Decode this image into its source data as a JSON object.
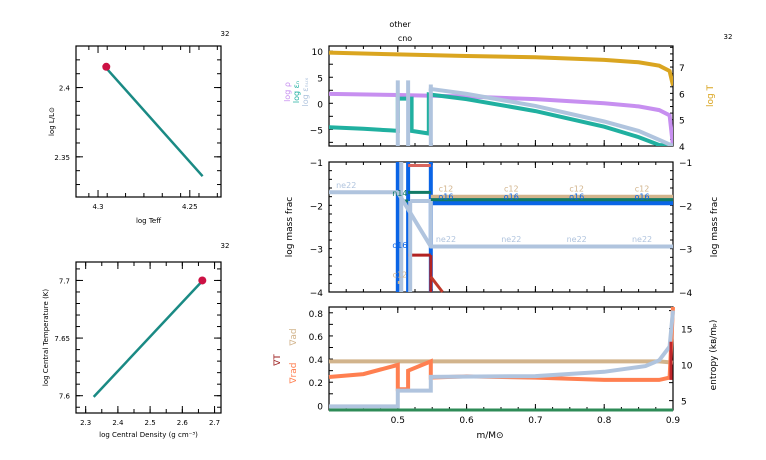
{
  "chart_data": [
    {
      "id": "hr",
      "type": "line",
      "title": "",
      "model_number": "32",
      "xlabel": "log Teff",
      "ylabel": "log L/L⊙",
      "xlim": [
        4.312,
        4.233
      ],
      "ylim": [
        2.321,
        2.43
      ],
      "xticks": [
        4.3,
        4.25
      ],
      "xtick_labels": [
        "4.3",
        "4.25"
      ],
      "yticks": [
        2.4,
        2.35
      ],
      "ytick_labels": [
        "2.4",
        "2.35"
      ],
      "series": [
        {
          "name": "track",
          "color": "#1a8a84",
          "x": [
            4.2955,
            4.243
          ],
          "y": [
            2.414,
            2.336
          ]
        }
      ],
      "marker": {
        "name": "current",
        "color": "#cc1144",
        "x": 4.2955,
        "y": 2.415
      }
    },
    {
      "id": "center",
      "type": "line",
      "model_number": "32",
      "xlabel": "log Central Density (g cm⁻³)",
      "ylabel": "log Central Temperature (K)",
      "xlim": [
        2.27,
        2.72
      ],
      "ylim": [
        7.585,
        7.716
      ],
      "xticks": [
        2.3,
        2.4,
        2.5,
        2.6,
        2.7
      ],
      "xtick_labels": [
        "2.3",
        "2.4",
        "2.5",
        "2.6",
        "2.7"
      ],
      "yticks": [
        7.6,
        7.65,
        7.7
      ],
      "ytick_labels": [
        "7.6",
        "7.65",
        "7.7"
      ],
      "series": [
        {
          "name": "track",
          "color": "#1a8a84",
          "x": [
            2.325,
            2.66
          ],
          "y": [
            7.599,
            7.699
          ]
        }
      ],
      "marker": {
        "name": "current",
        "color": "#cc1144",
        "x": 2.662,
        "y": 7.7
      }
    },
    {
      "id": "profile-top",
      "type": "line",
      "model_number": "32",
      "annotations": [
        "other",
        "cno"
      ],
      "xlim": [
        0.4,
        0.9
      ],
      "ylim": [
        -8.2,
        11
      ],
      "yticks": [
        10,
        5,
        0,
        -5
      ],
      "ytick_labels": [
        "10",
        "5",
        "0",
        "−5"
      ],
      "y2lim": [
        4,
        7.8
      ],
      "y2ticks": [
        7,
        6,
        5,
        4
      ],
      "y2tick_labels": [
        "7",
        "6",
        "5",
        "4"
      ],
      "ylabels": [
        {
          "text": "log ρ",
          "color": "#c78ff0"
        },
        {
          "text": "log εₙ",
          "color": "#20b0a0"
        },
        {
          "text": "log εₙᵤₓ",
          "color": "#b0c4de"
        }
      ],
      "y2label": {
        "text": "log T",
        "color": "#daa520"
      },
      "series": [
        {
          "name": "log T",
          "axis": "right",
          "color": "#daa520",
          "x": [
            0.4,
            0.5,
            0.6,
            0.7,
            0.8,
            0.85,
            0.88,
            0.895,
            0.9
          ],
          "y": [
            7.55,
            7.48,
            7.42,
            7.37,
            7.27,
            7.18,
            7.05,
            6.85,
            6.3
          ]
        },
        {
          "name": "log rho",
          "axis": "left",
          "color": "#c78ff0",
          "x": [
            0.4,
            0.5,
            0.6,
            0.7,
            0.8,
            0.85,
            0.88,
            0.895,
            0.9
          ],
          "y": [
            1.8,
            1.6,
            1.3,
            0.8,
            0.0,
            -0.6,
            -1.3,
            -2.3,
            -8.2
          ]
        },
        {
          "name": "log eps_nuc",
          "axis": "left",
          "color": "#20b0a0",
          "x": [
            0.4,
            0.45,
            0.49,
            0.5,
            0.5,
            0.52,
            0.52,
            0.545,
            0.545,
            0.6,
            0.7,
            0.8,
            0.85,
            0.88,
            0.9
          ],
          "y": [
            -4.6,
            -4.9,
            -5.2,
            -5.3,
            0.9,
            0.9,
            -5.3,
            -5.8,
            1.7,
            0.8,
            -1.5,
            -4.5,
            -6.5,
            -8.0,
            -8.2
          ]
        },
        {
          "name": "log eps_nuc gray",
          "axis": "left",
          "color": "#b0c4de",
          "x": [
            0.545,
            0.6,
            0.7,
            0.8,
            0.85,
            0.88,
            0.9
          ],
          "y": [
            2.8,
            1.8,
            -0.5,
            -3.5,
            -5.3,
            -7.0,
            -8.2
          ]
        }
      ],
      "spikes": {
        "color": "#b0c4de",
        "x": [
          0.5,
          0.515,
          0.548
        ],
        "y_top": [
          4.4,
          4.4,
          3.6
        ]
      }
    },
    {
      "id": "profile-abund",
      "type": "line",
      "ylabel": "log mass frac",
      "y2label": "log mass frac",
      "xlim": [
        0.4,
        0.9
      ],
      "ylim": [
        -4,
        -1
      ],
      "yticks": [
        -1,
        -2,
        -3,
        -4
      ],
      "ytick_labels": [
        "−1",
        "−2",
        "−3",
        "−4"
      ],
      "species_labels": {
        "ne22": {
          "color": "#b0c4de",
          "text": "ne22"
        },
        "n14": {
          "color": "#117a65",
          "text": "n14"
        },
        "o16": {
          "color": "#0a64e6",
          "text": "o16"
        },
        "c12": {
          "color": "#d2b48c",
          "text": "c12"
        },
        "he4": {
          "color": "#c0262c",
          "text": "he4"
        }
      },
      "series": [
        {
          "name": "c12",
          "color": "#d2b48c",
          "x": [
            0.548,
            0.9
          ],
          "y": [
            -1.8,
            -1.8
          ]
        },
        {
          "name": "n14",
          "color": "#117a65",
          "x": [
            0.548,
            0.9
          ],
          "y": [
            -1.88,
            -1.88
          ]
        },
        {
          "name": "o16",
          "color": "#0a64e6",
          "x": [
            0.548,
            0.9
          ],
          "y": [
            -1.95,
            -1.95
          ]
        },
        {
          "name": "ne22",
          "color": "#b0c4de",
          "x": [
            0.4,
            0.5,
            0.548,
            0.9
          ],
          "y": [
            -1.7,
            -1.7,
            -2.95,
            -2.95
          ]
        }
      ]
    },
    {
      "id": "profile-grad",
      "type": "line",
      "xlabel": "m/M⊙",
      "xlim": [
        0.4,
        0.9
      ],
      "xticks": [
        0.5,
        0.6,
        0.7,
        0.8,
        0.9
      ],
      "xtick_labels": [
        "0.5",
        "0.6",
        "0.7",
        "0.8",
        "0.9"
      ],
      "ylim": [
        -0.04,
        0.85
      ],
      "yticks": [
        0,
        0.2,
        0.4,
        0.6,
        0.8
      ],
      "ytick_labels": [
        "0",
        "0.2",
        "0.4",
        "0.6",
        "0.8"
      ],
      "y2lim": [
        3.7,
        18
      ],
      "y2ticks": [
        5,
        10,
        15
      ],
      "y2tick_labels": [
        "5",
        "10",
        "15"
      ],
      "ylabels": [
        {
          "text": "∇ad",
          "color": "#d2b48c"
        },
        {
          "text": "∇T",
          "color": "#9b1c1c"
        },
        {
          "text": "∇rad",
          "color": "#ff7f50"
        }
      ],
      "y2label": {
        "text": "entropy (kʙ/mₚ)",
        "color": "#000000"
      },
      "series": [
        {
          "name": "grad_ad",
          "color": "#d2b48c",
          "x": [
            0.4,
            0.88,
            0.9
          ],
          "y": [
            0.38,
            0.38,
            0.37
          ]
        },
        {
          "name": "grad_rad",
          "color": "#ff7f50",
          "x": [
            0.4,
            0.45,
            0.5,
            0.5,
            0.515,
            0.515,
            0.548,
            0.548,
            0.6,
            0.7,
            0.8,
            0.88,
            0.895,
            0.9
          ],
          "y": [
            0.245,
            0.27,
            0.35,
            0.14,
            0.14,
            0.3,
            0.38,
            0.24,
            0.25,
            0.24,
            0.22,
            0.22,
            0.24,
            0.9
          ]
        },
        {
          "name": "entropy",
          "axis": "right",
          "color": "#b0c4de",
          "x": [
            0.4,
            0.5,
            0.5,
            0.548,
            0.548,
            0.7,
            0.8,
            0.86,
            0.88,
            0.895,
            0.9
          ],
          "y": [
            4.2,
            4.2,
            6.4,
            6.4,
            8.3,
            8.4,
            9.0,
            9.8,
            10.6,
            12.5,
            17.5
          ]
        },
        {
          "name": "zero",
          "color": "#2e8b57",
          "x": [
            0.4,
            0.9
          ],
          "y": [
            -0.04,
            -0.04
          ]
        }
      ]
    }
  ]
}
